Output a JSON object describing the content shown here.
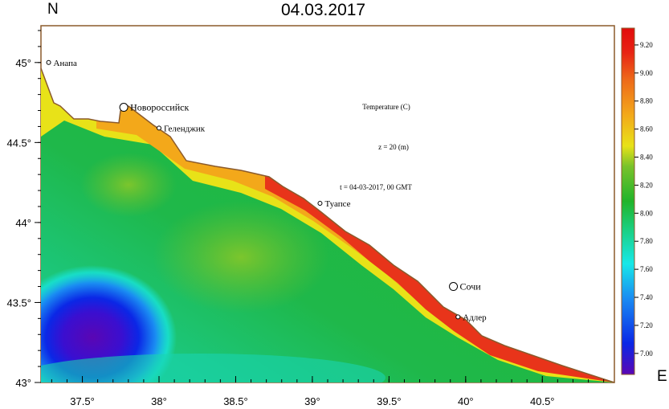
{
  "header": {
    "date_title": "04.03.2017",
    "north_label": "N",
    "east_label": "E"
  },
  "annotations": {
    "parameter": "Temperature (C)",
    "depth": "z = 20 (m)",
    "time": "t = 04-03-2017, 00 GMT"
  },
  "axes": {
    "lon_min": 37.23,
    "lon_max": 40.97,
    "lat_min": 43.0,
    "lat_max": 45.23,
    "x_ticks": [
      {
        "value": 37.5,
        "label": "37.5°"
      },
      {
        "value": 38.0,
        "label": "38°"
      },
      {
        "value": 38.5,
        "label": "38.5°"
      },
      {
        "value": 39.0,
        "label": "39°"
      },
      {
        "value": 39.5,
        "label": "39.5°"
      },
      {
        "value": 40.0,
        "label": "40°"
      },
      {
        "value": 40.5,
        "label": "40.5°"
      }
    ],
    "y_ticks": [
      {
        "value": 45.0,
        "label": "45°"
      },
      {
        "value": 44.5,
        "label": "44.5°"
      },
      {
        "value": 44.0,
        "label": "44°"
      },
      {
        "value": 43.5,
        "label": "43.5°"
      },
      {
        "value": 43.0,
        "label": "43°"
      }
    ]
  },
  "cities": [
    {
      "name": "Анапа",
      "lon": 37.28,
      "lat": 45.0,
      "major": false
    },
    {
      "name": "Новороссийск",
      "lon": 37.77,
      "lat": 44.72,
      "major": true
    },
    {
      "name": "Геленджик",
      "lon": 38.0,
      "lat": 44.59,
      "major": false
    },
    {
      "name": "Туапсе",
      "lon": 39.05,
      "lat": 44.12,
      "major": false
    },
    {
      "name": "Сочи",
      "lon": 39.92,
      "lat": 43.6,
      "major": true
    },
    {
      "name": "Адлер",
      "lon": 39.95,
      "lat": 43.41,
      "major": false
    }
  ],
  "colorbar": {
    "min": 6.85,
    "max": 9.32,
    "ticks": [
      "7.00",
      "7.20",
      "7.40",
      "7.60",
      "7.80",
      "8.00",
      "8.20",
      "8.40",
      "8.60",
      "8.80",
      "9.00",
      "9.20"
    ],
    "colors": [
      "#5a06b4",
      "#0b27e6",
      "#1a8cf2",
      "#17e8e8",
      "#1bcf80",
      "#21b42a",
      "#78c22a",
      "#e8e218",
      "#f3a81a",
      "#ee6a18",
      "#e82414",
      "#e20b0b"
    ]
  }
}
